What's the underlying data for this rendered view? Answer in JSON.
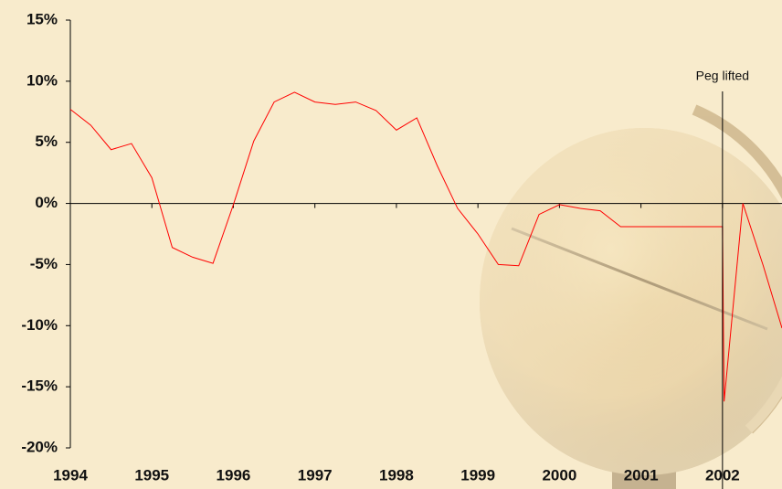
{
  "chart_data": {
    "type": "line",
    "x": [
      1994.0,
      1994.25,
      1994.5,
      1994.75,
      1995.0,
      1995.25,
      1995.5,
      1995.75,
      1996.0,
      1996.25,
      1996.5,
      1996.75,
      1997.0,
      1997.25,
      1997.5,
      1997.75,
      1998.0,
      1998.25,
      1998.5,
      1998.75,
      1999.0,
      1999.25,
      1999.5,
      1999.75,
      2000.0,
      2000.25,
      2000.5,
      2000.75,
      2001.0,
      2001.25,
      2001.5,
      2001.75,
      2002.0,
      2002.02,
      2002.25,
      2002.5,
      2002.73
    ],
    "values": [
      7.7,
      6.4,
      4.4,
      4.9,
      2.1,
      -3.6,
      -4.4,
      -4.9,
      -0.1,
      5.1,
      8.3,
      9.1,
      8.3,
      8.1,
      8.3,
      7.6,
      6.0,
      7.0,
      3.1,
      -0.4,
      -2.5,
      -5.0,
      -5.1,
      -0.9,
      -0.1,
      -0.4,
      -0.6,
      -1.9,
      -1.9,
      -1.9,
      -1.9,
      -1.9,
      -1.9,
      -16.2,
      0.0,
      -5.1,
      -10.2
    ],
    "color": "#ff0000",
    "xlim": [
      1994,
      2002.73
    ],
    "xticks": [
      1994,
      1995,
      1996,
      1997,
      1998,
      1999,
      2000,
      2001,
      2002
    ],
    "ylim": [
      -20,
      15
    ],
    "yticks": [
      {
        "value": -20,
        "label": "-20%"
      },
      {
        "value": -15,
        "label": "-15%"
      },
      {
        "value": -10,
        "label": "-10%"
      },
      {
        "value": -5,
        "label": "-5%"
      },
      {
        "value": 0,
        "label": "0%"
      },
      {
        "value": 5,
        "label": "5%"
      },
      {
        "value": 10,
        "label": "10%"
      },
      {
        "value": 15,
        "label": "15%"
      }
    ],
    "annotations": [
      {
        "text": "Peg lifted",
        "x": 2002
      }
    ]
  }
}
